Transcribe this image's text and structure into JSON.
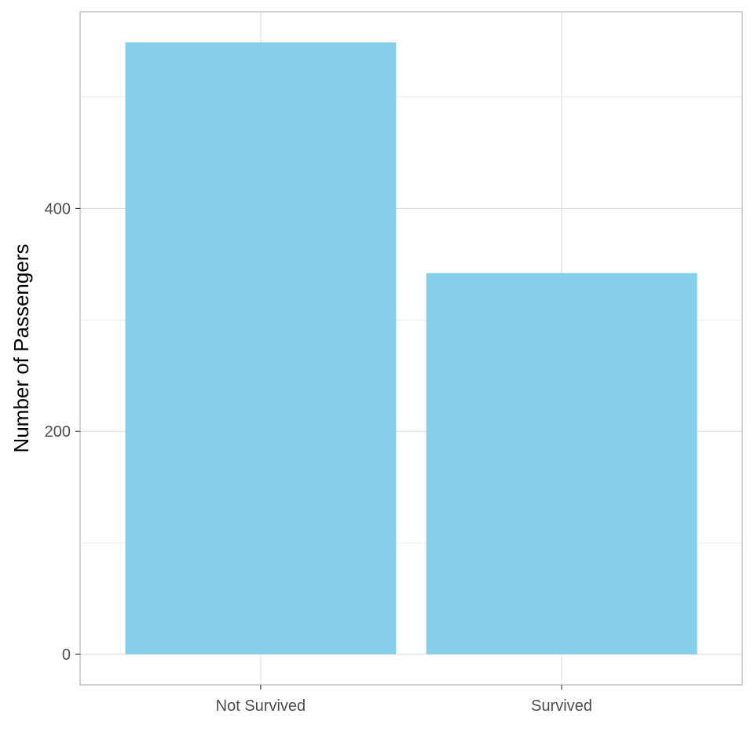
{
  "chart_data": {
    "type": "bar",
    "categories": [
      "Not Survived",
      "Survived"
    ],
    "values": [
      549,
      342
    ],
    "xlabel": "",
    "ylabel": "Number of Passengers",
    "ylim": [
      -27.45,
      576.45
    ],
    "y_ticks": [
      0,
      200,
      400
    ],
    "grid": true,
    "theme": "light",
    "colors": {
      "bar": "#87ceeb",
      "grid": "#dedede",
      "panel_border": "#b3b3b3",
      "tick_label": "#4d4d4d"
    }
  }
}
